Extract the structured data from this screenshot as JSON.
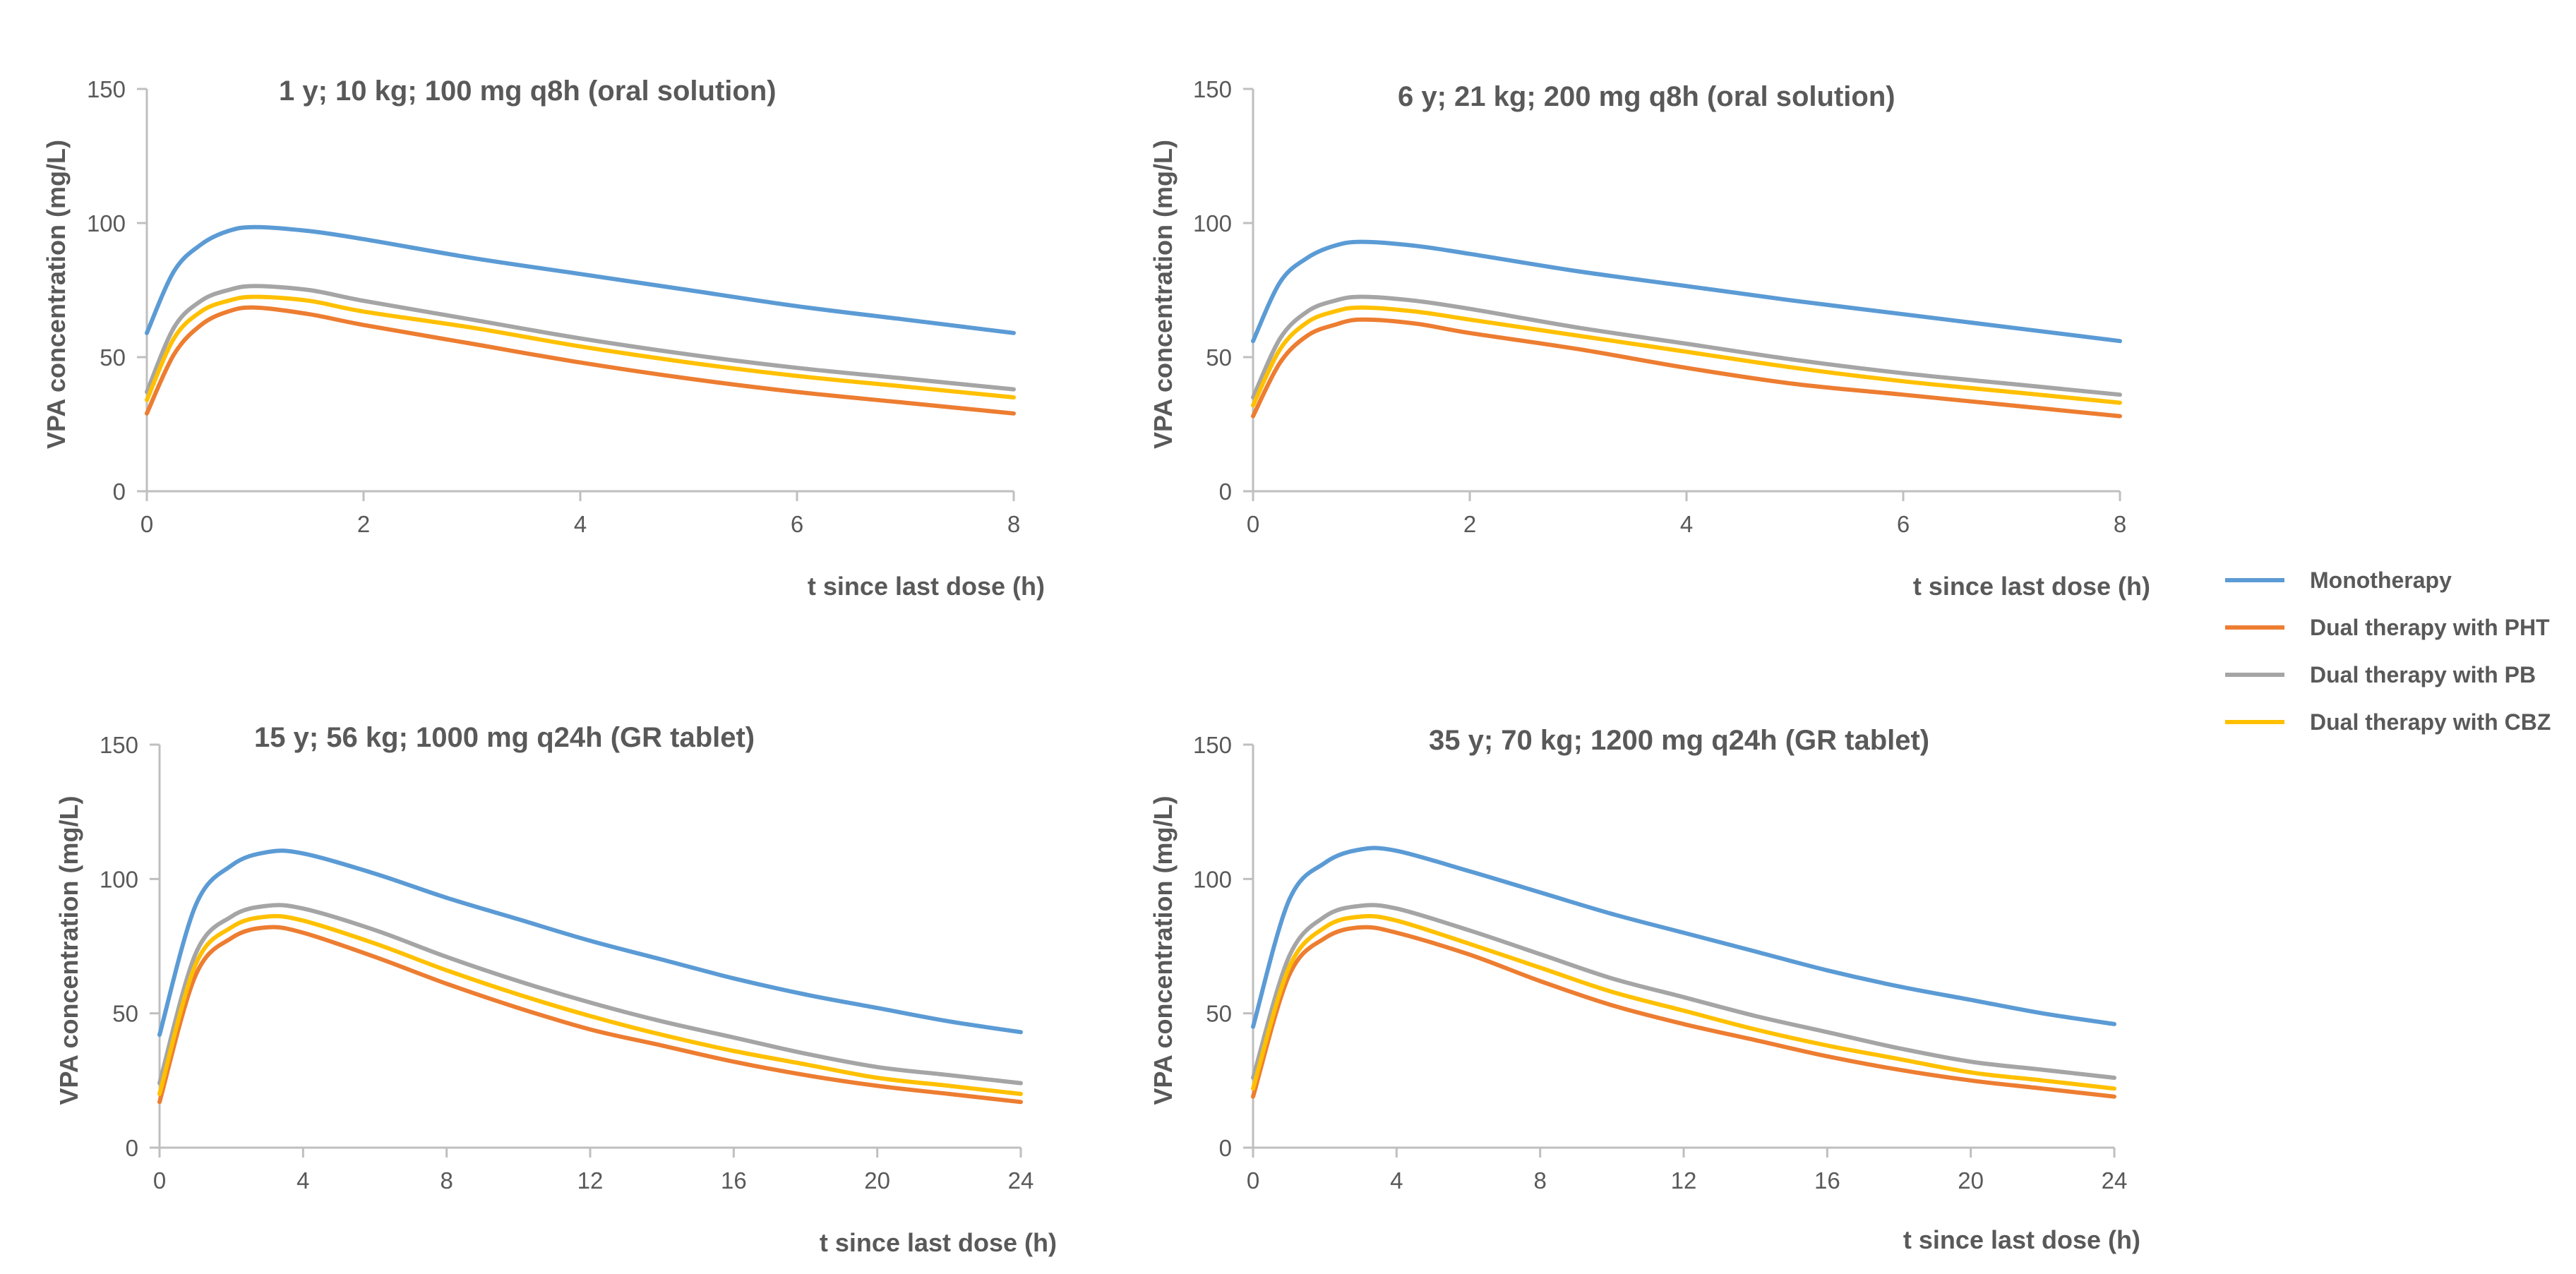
{
  "chart_data": [
    {
      "type": "line",
      "title": "1 y; 10 kg; 100 mg q8h (oral solution)",
      "xlabel": "t since last dose (h)",
      "ylabel": "VPA concentration (mg/L)",
      "xlim": [
        0,
        8
      ],
      "ylim": [
        0,
        150
      ],
      "xticks": [
        0,
        2,
        4,
        6,
        8
      ],
      "yticks": [
        0,
        50,
        100,
        150
      ],
      "x": [
        0,
        0.25,
        0.5,
        0.75,
        1,
        1.5,
        2,
        3,
        4,
        5,
        6,
        7,
        8
      ],
      "series": [
        {
          "name": "Monotherapy",
          "values": [
            59,
            82,
            92,
            97,
            98.5,
            97,
            94,
            87,
            81,
            75,
            69,
            64,
            59
          ]
        },
        {
          "name": "Dual therapy with PHT",
          "values": [
            29,
            51,
            62,
            67,
            68.5,
            66,
            62,
            55,
            48,
            42,
            37,
            33,
            29
          ]
        },
        {
          "name": "Dual therapy with PB",
          "values": [
            37,
            61,
            71,
            75,
            76.5,
            75,
            71,
            64,
            57,
            51,
            46,
            42,
            38
          ]
        },
        {
          "name": "Dual therapy with CBZ",
          "values": [
            34,
            57,
            67,
            71,
            72.5,
            71,
            67,
            61,
            54,
            48,
            43,
            39,
            35
          ]
        }
      ]
    },
    {
      "type": "line",
      "title": "6 y; 21 kg; 200 mg q8h (oral solution)",
      "xlabel": "t since last dose (h)",
      "ylabel": "VPA concentration (mg/L)",
      "xlim": [
        0,
        8
      ],
      "ylim": [
        0,
        150
      ],
      "xticks": [
        0,
        2,
        4,
        6,
        8
      ],
      "yticks": [
        0,
        50,
        100,
        150
      ],
      "x": [
        0,
        0.25,
        0.5,
        0.75,
        1,
        1.5,
        2,
        3,
        4,
        5,
        6,
        7,
        8
      ],
      "series": [
        {
          "name": "Monotherapy",
          "values": [
            56,
            78,
            87,
            91.5,
            93,
            91.5,
            88.5,
            82,
            76.5,
            71,
            66,
            61,
            56
          ]
        },
        {
          "name": "Dual therapy with PHT",
          "values": [
            28,
            48,
            58,
            62,
            64,
            62.5,
            59,
            53,
            46,
            40,
            36,
            32,
            28
          ]
        },
        {
          "name": "Dual therapy with PB",
          "values": [
            35,
            57,
            67,
            71,
            72.5,
            71,
            68,
            61,
            55,
            49,
            44,
            40,
            36
          ]
        },
        {
          "name": "Dual therapy with CBZ",
          "values": [
            32,
            53,
            63,
            67,
            68.5,
            67,
            64,
            58,
            52,
            46,
            41,
            37,
            33
          ]
        }
      ]
    },
    {
      "type": "line",
      "title": "15 y; 56 kg; 1000 mg q24h (GR tablet)",
      "xlabel": "t since last dose (h)",
      "ylabel": "VPA concentration (mg/L)",
      "xlim": [
        0,
        24
      ],
      "ylim": [
        0,
        150
      ],
      "xticks": [
        0,
        4,
        8,
        12,
        16,
        20,
        24
      ],
      "yticks": [
        0,
        50,
        100,
        150
      ],
      "x": [
        0,
        1,
        2,
        3,
        4,
        6,
        8,
        10,
        12,
        14,
        16,
        18,
        20,
        22,
        24
      ],
      "series": [
        {
          "name": "Monotherapy",
          "values": [
            42,
            90,
            105,
            110,
            109.5,
            102,
            93,
            85,
            77,
            70,
            63,
            57,
            52,
            47,
            43
          ]
        },
        {
          "name": "Dual therapy with PHT",
          "values": [
            17,
            64,
            78,
            82,
            80,
            71,
            61,
            52,
            44,
            38,
            32,
            27,
            23,
            20,
            17
          ]
        },
        {
          "name": "Dual therapy with PB",
          "values": [
            24,
            72,
            86,
            90,
            89,
            81,
            71,
            62,
            54,
            47,
            41,
            35,
            30,
            27,
            24
          ]
        },
        {
          "name": "Dual therapy with CBZ",
          "values": [
            20,
            68,
            82,
            86,
            84.5,
            76,
            66,
            57,
            49,
            42,
            36,
            31,
            26,
            23,
            20
          ]
        }
      ]
    },
    {
      "type": "line",
      "title": "35 y; 70 kg; 1200 mg q24h (GR tablet)",
      "xlabel": "t since last dose (h)",
      "ylabel": "VPA concentration (mg/L)",
      "xlim": [
        0,
        24
      ],
      "ylim": [
        0,
        150
      ],
      "xticks": [
        0,
        4,
        8,
        12,
        16,
        20,
        24
      ],
      "yticks": [
        0,
        50,
        100,
        150
      ],
      "x": [
        0,
        1,
        2,
        3,
        4,
        6,
        8,
        10,
        12,
        14,
        16,
        18,
        20,
        22,
        24
      ],
      "series": [
        {
          "name": "Monotherapy",
          "values": [
            45,
            92,
            106,
            111,
            110.5,
            103,
            95,
            87,
            80,
            73,
            66,
            60,
            55,
            50,
            46
          ]
        },
        {
          "name": "Dual therapy with PHT",
          "values": [
            19,
            64,
            78,
            82,
            80,
            72,
            62,
            53,
            46,
            40,
            34,
            29,
            25,
            22,
            19
          ]
        },
        {
          "name": "Dual therapy with PB",
          "values": [
            26,
            71,
            86,
            90,
            89,
            81,
            72,
            63,
            56,
            49,
            43,
            37,
            32,
            29,
            26
          ]
        },
        {
          "name": "Dual therapy with CBZ",
          "values": [
            22,
            67,
            82,
            86,
            84.5,
            76,
            67,
            58,
            51,
            44,
            38,
            33,
            28,
            25,
            22
          ]
        }
      ]
    }
  ],
  "legend": {
    "placement": "right",
    "items": [
      {
        "name": "Monotherapy",
        "color": "#5b9bd5"
      },
      {
        "name": "Dual therapy with PHT",
        "color": "#ed7d31"
      },
      {
        "name": "Dual therapy with PB",
        "color": "#a5a5a5"
      },
      {
        "name": "Dual therapy with CBZ",
        "color": "#ffc000"
      }
    ]
  }
}
